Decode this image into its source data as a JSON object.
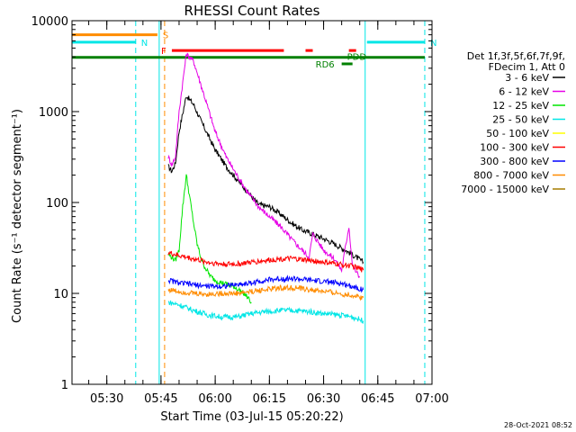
{
  "chart_data": {
    "type": "line",
    "title": "RHESSI Count Rates",
    "xlabel": "Start Time (03-Jul-15 05:20:22)",
    "ylabel": "Count Rate (s⁻¹ detector segment⁻¹)",
    "yscale": "log",
    "xlim": [
      "05:20:22",
      "07:00:00"
    ],
    "ylim": [
      1,
      10000
    ],
    "x_ticks": [
      "05:30",
      "05:45",
      "06:00",
      "06:15",
      "06:30",
      "06:45",
      "07:00"
    ],
    "y_ticks": [
      "1",
      "10",
      "100",
      "1000",
      "10000"
    ],
    "timestamp": "28-Oct-2021 08:52",
    "legend_header": [
      "Det 1f,3f,5f,6f,7f,9f,",
      "FDecim 1, Att 0"
    ],
    "legend_position": "right",
    "series": [
      {
        "name": "3 - 6 keV",
        "color": "#000000",
        "x": [
          "05:47:00",
          "05:48:00",
          "05:49:00",
          "05:50:00",
          "05:52:00",
          "05:54:00",
          "05:56:00",
          "05:58:00",
          "06:00:00",
          "06:03:00",
          "06:06:00",
          "06:09:00",
          "06:12:00",
          "06:15:00",
          "06:18:00",
          "06:21:00",
          "06:24:00",
          "06:27:00",
          "06:30:00",
          "06:33:00",
          "06:36:00",
          "06:39:00",
          "06:41:00"
        ],
        "y": [
          250,
          220,
          270,
          600,
          1500,
          1200,
          800,
          550,
          380,
          250,
          180,
          130,
          95,
          90,
          75,
          60,
          50,
          45,
          40,
          35,
          30,
          25,
          22
        ]
      },
      {
        "name": "6 - 12 keV",
        "color": "#e600e6",
        "x": [
          "05:47:00",
          "05:48:00",
          "05:49:00",
          "05:50:00",
          "05:52:00",
          "05:54:00",
          "05:56:00",
          "05:58:00",
          "06:00:00",
          "06:03:00",
          "06:06:00",
          "06:09:00",
          "06:12:00",
          "06:15:00",
          "06:18:00",
          "06:21:00",
          "06:24:00",
          "06:26:00",
          "06:27:00",
          "06:30:00",
          "06:33:00",
          "06:35:00",
          "06:37:00",
          "06:38:00",
          "06:40:00"
        ],
        "y": [
          320,
          260,
          320,
          1000,
          4300,
          3600,
          2000,
          1100,
          600,
          320,
          200,
          130,
          90,
          70,
          55,
          40,
          30,
          25,
          45,
          30,
          24,
          18,
          55,
          20,
          15
        ]
      },
      {
        "name": "12 - 25 keV",
        "color": "#00e600",
        "x": [
          "05:47:00",
          "05:48:00",
          "05:49:00",
          "05:50:00",
          "05:51:00",
          "05:52:00",
          "05:53:00",
          "05:54:00",
          "05:55:00",
          "05:56:00",
          "05:57:00",
          "05:58:00",
          "05:59:00",
          "06:00:00",
          "06:02:00",
          "06:05:00",
          "06:08:00",
          "06:10:00"
        ],
        "y": [
          27,
          25,
          23,
          30,
          90,
          200,
          110,
          60,
          35,
          25,
          20,
          17,
          15,
          14,
          13,
          12,
          10,
          8
        ]
      },
      {
        "name": "25 - 50 keV",
        "color": "#00e6e6",
        "x": [
          "05:47:00",
          "05:50:00",
          "05:54:00",
          "05:58:00",
          "06:02:00",
          "06:06:00",
          "06:10:00",
          "06:14:00",
          "06:18:00",
          "06:22:00",
          "06:26:00",
          "06:30:00",
          "06:34:00",
          "06:38:00",
          "06:41:00"
        ],
        "y": [
          8,
          7.5,
          6.5,
          5.8,
          5.5,
          5.5,
          6,
          6.3,
          6.5,
          6.5,
          6.3,
          6,
          5.8,
          5.5,
          5
        ]
      },
      {
        "name": "50 - 100 keV",
        "color": "#ffff00",
        "x": [],
        "y": []
      },
      {
        "name": "100 - 300 keV",
        "color": "#ff0000",
        "x": [
          "05:47:00",
          "05:50:00",
          "05:54:00",
          "05:58:00",
          "06:02:00",
          "06:06:00",
          "06:10:00",
          "06:14:00",
          "06:18:00",
          "06:22:00",
          "06:26:00",
          "06:30:00",
          "06:34:00",
          "06:38:00",
          "06:41:00"
        ],
        "y": [
          28,
          26,
          24,
          22,
          21,
          21,
          22,
          23,
          24,
          24,
          23,
          22,
          21,
          20,
          18
        ]
      },
      {
        "name": "300 - 800 keV",
        "color": "#0000ff",
        "x": [
          "05:47:00",
          "05:50:00",
          "05:54:00",
          "05:58:00",
          "06:02:00",
          "06:06:00",
          "06:10:00",
          "06:14:00",
          "06:18:00",
          "06:22:00",
          "06:26:00",
          "06:30:00",
          "06:34:00",
          "06:38:00",
          "06:41:00"
        ],
        "y": [
          14,
          13,
          12.5,
          12,
          12,
          12.5,
          13,
          14,
          14.5,
          14.5,
          14,
          13.5,
          13,
          12,
          11
        ]
      },
      {
        "name": "800 - 7000 keV",
        "color": "#ff8c00",
        "x": [
          "05:47:00",
          "05:50:00",
          "05:54:00",
          "05:58:00",
          "06:02:00",
          "06:06:00",
          "06:10:00",
          "06:14:00",
          "06:18:00",
          "06:22:00",
          "06:26:00",
          "06:30:00",
          "06:34:00",
          "06:38:00",
          "06:41:00"
        ],
        "y": [
          11,
          10.5,
          10,
          9.8,
          10,
          10,
          10.5,
          11,
          11.5,
          11.5,
          11,
          10.5,
          10,
          9.5,
          9
        ]
      },
      {
        "name": "7000 - 15000 keV",
        "color": "#a67c00",
        "x": [],
        "y": []
      }
    ],
    "flag_bars": [
      {
        "label": "S",
        "color": "#ff8c00",
        "x_start": "05:20:22",
        "x_end": "05:44:00",
        "level": 7000
      },
      {
        "label": "N",
        "color": "#00e6e6",
        "x_start": "05:20:22",
        "x_end": "05:38:00",
        "level": 5800
      },
      {
        "label": "N",
        "color": "#00e6e6",
        "x_start": "06:42:00",
        "x_end": "06:58:00",
        "level": 5800
      },
      {
        "label": "F",
        "color": "#ff0000",
        "x_start": "05:48:00",
        "x_end": "06:19:00",
        "level": 4700
      },
      {
        "label": "",
        "color": "#ff0000",
        "x_start": "06:25:00",
        "x_end": "06:27:00",
        "level": 4700
      },
      {
        "label": "",
        "color": "#ff0000",
        "x_start": "06:37:00",
        "x_end": "06:39:00",
        "level": 4700
      },
      {
        "label": "",
        "color": "#008000",
        "x_start": "05:20:22",
        "x_end": "06:58:00",
        "level": 3950
      },
      {
        "label": "RD6",
        "color": "#008000",
        "x_start": "06:35:00",
        "x_end": "06:38:00",
        "level": 3350
      },
      {
        "label": "PDD",
        "color": "#008000",
        "x_start": "06:37:00",
        "x_end": "06:37:30",
        "level": 3950
      }
    ],
    "vertical_lines": [
      {
        "x": "05:20:22",
        "color": "#00e6e6",
        "style": "solid"
      },
      {
        "x": "05:38:00",
        "color": "#00e6e6",
        "style": "dashed"
      },
      {
        "x": "05:44:30",
        "color": "#00e6e6",
        "style": "solid"
      },
      {
        "x": "05:46:00",
        "color": "#ff8c00",
        "style": "dashed"
      },
      {
        "x": "06:41:30",
        "color": "#00e6e6",
        "style": "solid"
      },
      {
        "x": "06:58:00",
        "color": "#00e6e6",
        "style": "dashed"
      }
    ]
  }
}
